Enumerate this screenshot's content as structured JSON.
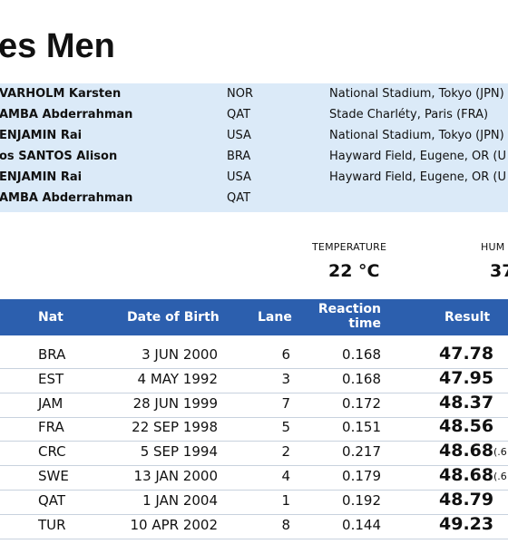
{
  "header": {
    "title": "es Men"
  },
  "records": [
    {
      "name": "VARHOLM Karsten",
      "nat": "NOR",
      "venue": "National Stadium, Tokyo (JPN)"
    },
    {
      "name": "AMBA Abderrahman",
      "nat": "QAT",
      "venue": "Stade Charléty, Paris (FRA)"
    },
    {
      "name": "ENJAMIN Rai",
      "nat": "USA",
      "venue": "National Stadium, Tokyo (JPN)"
    },
    {
      "name": "os SANTOS Alison",
      "nat": "BRA",
      "venue": "Hayward Field, Eugene, OR (U"
    },
    {
      "name": "ENJAMIN Rai",
      "nat": "USA",
      "venue": "Hayward Field, Eugene, OR (U"
    },
    {
      "name": "AMBA Abderrahman",
      "nat": "QAT"
    }
  ],
  "weather": [
    {
      "label": "TEMPERATURE",
      "value": "22 °C"
    },
    {
      "label": "HUM",
      "value": "37"
    }
  ],
  "table": {
    "columns": [
      "Nat",
      "Date of Birth",
      "Lane",
      "Reaction time",
      "Result"
    ],
    "rows": [
      {
        "nat": "BRA",
        "dob": "3 JUN 2000",
        "lane": "6",
        "reaction": "0.168",
        "result": "47.78"
      },
      {
        "nat": "EST",
        "dob": "4 MAY 1992",
        "lane": "3",
        "reaction": "0.168",
        "result": "47.95"
      },
      {
        "nat": "JAM",
        "dob": "28 JUN 1999",
        "lane": "7",
        "reaction": "0.172",
        "result": "48.37"
      },
      {
        "nat": "FRA",
        "dob": "22 SEP 1998",
        "lane": "5",
        "reaction": "0.151",
        "result": "48.56"
      },
      {
        "nat": "CRC",
        "dob": "5 SEP 1994",
        "lane": "2",
        "reaction": "0.217",
        "result": "48.68",
        "note": "(.6"
      },
      {
        "nat": "SWE",
        "dob": "13 JAN 2000",
        "lane": "4",
        "reaction": "0.179",
        "result": "48.68",
        "note": "(.6"
      },
      {
        "nat": "QAT",
        "dob": "1 JAN 2004",
        "lane": "1",
        "reaction": "0.192",
        "result": "48.79"
      },
      {
        "nat": "TUR",
        "dob": "10 APR 2002",
        "lane": "8",
        "reaction": "0.144",
        "result": "49.23"
      }
    ]
  }
}
